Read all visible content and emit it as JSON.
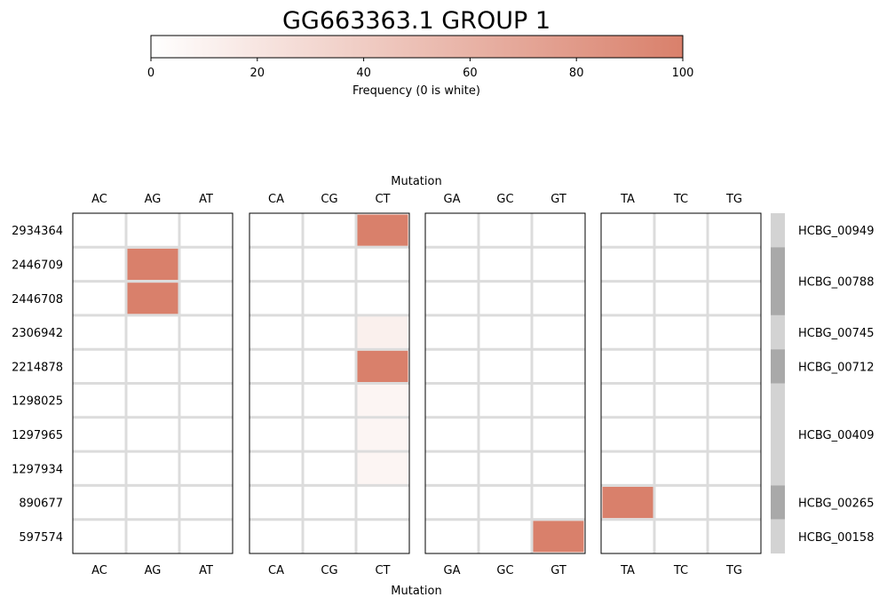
{
  "chart_data": {
    "type": "heatmap",
    "title": "GG663363.1 GROUP 1",
    "colorbar": {
      "label": "Frequency (0 is white)",
      "min": 0,
      "max": 100,
      "ticks": [
        "0",
        "20",
        "40",
        "60",
        "80",
        "100"
      ],
      "color_low": "#ffffff",
      "color_high": "#d9806b"
    },
    "xlabel_top": "Mutation",
    "xlabel_bottom": "Mutation",
    "panels": [
      {
        "columns": [
          "AC",
          "AG",
          "AT"
        ]
      },
      {
        "columns": [
          "CA",
          "CG",
          "CT"
        ]
      },
      {
        "columns": [
          "GA",
          "GC",
          "GT"
        ]
      },
      {
        "columns": [
          "TA",
          "TC",
          "TG"
        ]
      }
    ],
    "rows": [
      "2934364",
      "2446709",
      "2446708",
      "2306942",
      "2214878",
      "1298025",
      "1297965",
      "1297934",
      "890677",
      "597574"
    ],
    "cells": [
      {
        "row": "2934364",
        "mutation": "CT",
        "value": 100
      },
      {
        "row": "2446709",
        "mutation": "AG",
        "value": 100
      },
      {
        "row": "2446708",
        "mutation": "AG",
        "value": 100
      },
      {
        "row": "2306942",
        "mutation": "CT",
        "value": 12
      },
      {
        "row": "2214878",
        "mutation": "CT",
        "value": 100
      },
      {
        "row": "1298025",
        "mutation": "CT",
        "value": 8
      },
      {
        "row": "1297965",
        "mutation": "CT",
        "value": 8
      },
      {
        "row": "1297934",
        "mutation": "CT",
        "value": 8
      },
      {
        "row": "890677",
        "mutation": "TA",
        "value": 100
      },
      {
        "row": "597574",
        "mutation": "GT",
        "value": 100
      }
    ],
    "genes": [
      {
        "name": "HCBG_00949",
        "rows": 1,
        "shade": "#d3d3d3"
      },
      {
        "name": "HCBG_00788",
        "rows": 2,
        "shade": "#a9a9a9"
      },
      {
        "name": "HCBG_00745",
        "rows": 1,
        "shade": "#d3d3d3"
      },
      {
        "name": "HCBG_00712",
        "rows": 1,
        "shade": "#a9a9a9"
      },
      {
        "name": "HCBG_00409",
        "rows": 3,
        "shade": "#d3d3d3"
      },
      {
        "name": "HCBG_00265",
        "rows": 1,
        "shade": "#a9a9a9"
      },
      {
        "name": "HCBG_00158",
        "rows": 1,
        "shade": "#d3d3d3"
      }
    ],
    "grid_color": "#dcdcdc"
  }
}
